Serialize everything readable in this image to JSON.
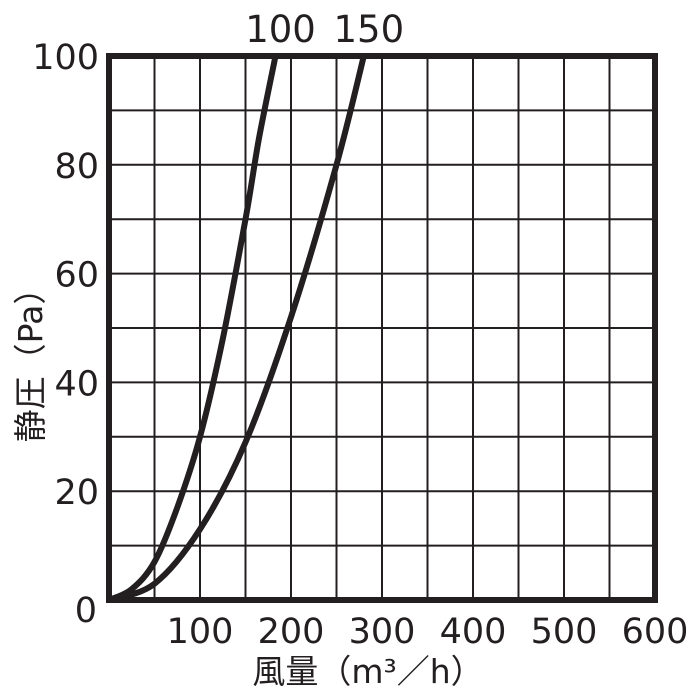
{
  "chart_data": {
    "type": "line",
    "xlabel": "風量（m³／h）",
    "ylabel": "静圧（Pa）",
    "xlim": [
      0,
      600
    ],
    "ylim": [
      0,
      100
    ],
    "x_ticks": [
      100,
      200,
      300,
      400,
      500,
      600
    ],
    "y_ticks": [
      20,
      40,
      60,
      80,
      100
    ],
    "origin_label": "0",
    "grid": true,
    "colors": {
      "line": "#231f20",
      "grid": "#231f20"
    },
    "series": [
      {
        "name": "100",
        "x": [
          0,
          25,
          50,
          75,
          100,
          125,
          150,
          165,
          183
        ],
        "y": [
          0,
          2,
          7,
          17,
          30,
          48,
          70,
          85,
          100
        ]
      },
      {
        "name": "150",
        "x": [
          0,
          50,
          100,
          150,
          200,
          250,
          280
        ],
        "y": [
          0,
          3,
          13,
          29,
          52,
          80,
          100
        ]
      }
    ]
  }
}
